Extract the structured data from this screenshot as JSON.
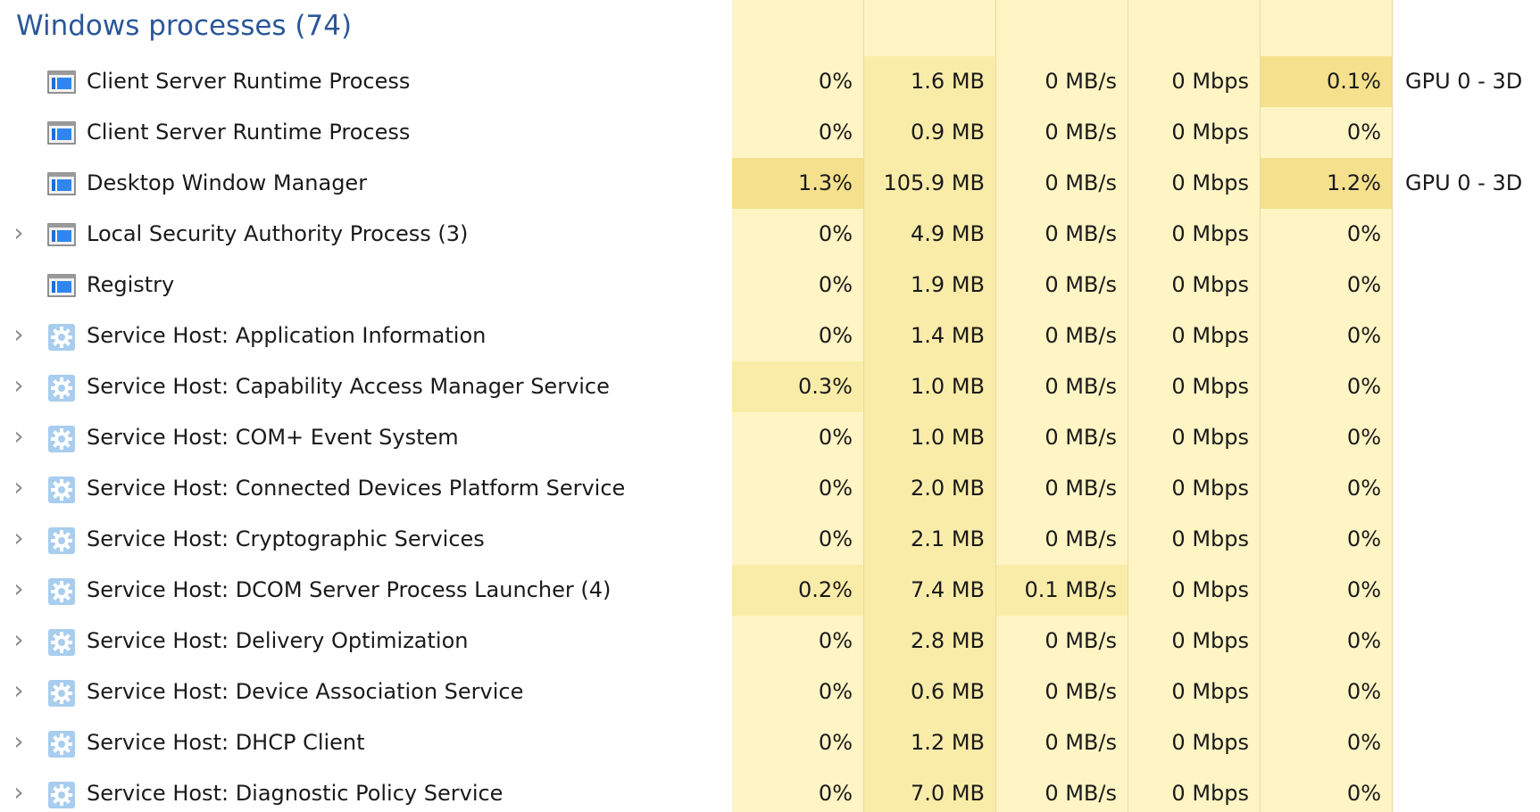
{
  "section": {
    "title": "Windows processes (74)"
  },
  "colors": {
    "heat_low": "#fff4c4",
    "heat_mid": "#f9eca8",
    "heat_high": "#f5e08e",
    "title_blue": "#2b579a"
  },
  "columns": [
    {
      "key": "cpu"
    },
    {
      "key": "memory"
    },
    {
      "key": "disk"
    },
    {
      "key": "network"
    },
    {
      "key": "gpu"
    },
    {
      "key": "gpu_engine"
    }
  ],
  "processes": [
    {
      "expandable": false,
      "icon": "window-app-icon",
      "name": "Client Server Runtime Process",
      "cpu": "0%",
      "memory": "1.6 MB",
      "disk": "0 MB/s",
      "network": "0 Mbps",
      "gpu": "0.1%",
      "gpu_engine": "GPU 0 - 3D",
      "heat": {
        "cpu": "low",
        "memory": "mid",
        "disk": "low",
        "network": "low",
        "gpu": "high"
      }
    },
    {
      "expandable": false,
      "icon": "window-app-icon",
      "name": "Client Server Runtime Process",
      "cpu": "0%",
      "memory": "0.9 MB",
      "disk": "0 MB/s",
      "network": "0 Mbps",
      "gpu": "0%",
      "gpu_engine": "",
      "heat": {
        "cpu": "low",
        "memory": "mid",
        "disk": "low",
        "network": "low",
        "gpu": "low"
      }
    },
    {
      "expandable": false,
      "icon": "window-app-icon",
      "name": "Desktop Window Manager",
      "cpu": "1.3%",
      "memory": "105.9 MB",
      "disk": "0 MB/s",
      "network": "0 Mbps",
      "gpu": "1.2%",
      "gpu_engine": "GPU 0 - 3D",
      "heat": {
        "cpu": "high",
        "memory": "mid",
        "disk": "low",
        "network": "low",
        "gpu": "high"
      }
    },
    {
      "expandable": true,
      "icon": "window-app-icon",
      "name": "Local Security Authority Process (3)",
      "cpu": "0%",
      "memory": "4.9 MB",
      "disk": "0 MB/s",
      "network": "0 Mbps",
      "gpu": "0%",
      "gpu_engine": "",
      "heat": {
        "cpu": "low",
        "memory": "mid",
        "disk": "low",
        "network": "low",
        "gpu": "low"
      }
    },
    {
      "expandable": false,
      "icon": "window-app-icon",
      "name": "Registry",
      "cpu": "0%",
      "memory": "1.9 MB",
      "disk": "0 MB/s",
      "network": "0 Mbps",
      "gpu": "0%",
      "gpu_engine": "",
      "heat": {
        "cpu": "low",
        "memory": "mid",
        "disk": "low",
        "network": "low",
        "gpu": "low"
      }
    },
    {
      "expandable": true,
      "icon": "gear-service-icon",
      "name": "Service Host: Application Information",
      "cpu": "0%",
      "memory": "1.4 MB",
      "disk": "0 MB/s",
      "network": "0 Mbps",
      "gpu": "0%",
      "gpu_engine": "",
      "heat": {
        "cpu": "low",
        "memory": "mid",
        "disk": "low",
        "network": "low",
        "gpu": "low"
      }
    },
    {
      "expandable": true,
      "icon": "gear-service-icon",
      "name": "Service Host: Capability Access Manager Service",
      "cpu": "0.3%",
      "memory": "1.0 MB",
      "disk": "0 MB/s",
      "network": "0 Mbps",
      "gpu": "0%",
      "gpu_engine": "",
      "heat": {
        "cpu": "mid",
        "memory": "mid",
        "disk": "low",
        "network": "low",
        "gpu": "low"
      }
    },
    {
      "expandable": true,
      "icon": "gear-service-icon",
      "name": "Service Host: COM+ Event System",
      "cpu": "0%",
      "memory": "1.0 MB",
      "disk": "0 MB/s",
      "network": "0 Mbps",
      "gpu": "0%",
      "gpu_engine": "",
      "heat": {
        "cpu": "low",
        "memory": "mid",
        "disk": "low",
        "network": "low",
        "gpu": "low"
      }
    },
    {
      "expandable": true,
      "icon": "gear-service-icon",
      "name": "Service Host: Connected Devices Platform Service",
      "cpu": "0%",
      "memory": "2.0 MB",
      "disk": "0 MB/s",
      "network": "0 Mbps",
      "gpu": "0%",
      "gpu_engine": "",
      "heat": {
        "cpu": "low",
        "memory": "mid",
        "disk": "low",
        "network": "low",
        "gpu": "low"
      }
    },
    {
      "expandable": true,
      "icon": "gear-service-icon",
      "name": "Service Host: Cryptographic Services",
      "cpu": "0%",
      "memory": "2.1 MB",
      "disk": "0 MB/s",
      "network": "0 Mbps",
      "gpu": "0%",
      "gpu_engine": "",
      "heat": {
        "cpu": "low",
        "memory": "mid",
        "disk": "low",
        "network": "low",
        "gpu": "low"
      }
    },
    {
      "expandable": true,
      "icon": "gear-service-icon",
      "name": "Service Host: DCOM Server Process Launcher (4)",
      "cpu": "0.2%",
      "memory": "7.4 MB",
      "disk": "0.1 MB/s",
      "network": "0 Mbps",
      "gpu": "0%",
      "gpu_engine": "",
      "heat": {
        "cpu": "mid",
        "memory": "mid",
        "disk": "mid",
        "network": "low",
        "gpu": "low"
      }
    },
    {
      "expandable": true,
      "icon": "gear-service-icon",
      "name": "Service Host: Delivery Optimization",
      "cpu": "0%",
      "memory": "2.8 MB",
      "disk": "0 MB/s",
      "network": "0 Mbps",
      "gpu": "0%",
      "gpu_engine": "",
      "heat": {
        "cpu": "low",
        "memory": "mid",
        "disk": "low",
        "network": "low",
        "gpu": "low"
      }
    },
    {
      "expandable": true,
      "icon": "gear-service-icon",
      "name": "Service Host: Device Association Service",
      "cpu": "0%",
      "memory": "0.6 MB",
      "disk": "0 MB/s",
      "network": "0 Mbps",
      "gpu": "0%",
      "gpu_engine": "",
      "heat": {
        "cpu": "low",
        "memory": "mid",
        "disk": "low",
        "network": "low",
        "gpu": "low"
      }
    },
    {
      "expandable": true,
      "icon": "gear-service-icon",
      "name": "Service Host: DHCP Client",
      "cpu": "0%",
      "memory": "1.2 MB",
      "disk": "0 MB/s",
      "network": "0 Mbps",
      "gpu": "0%",
      "gpu_engine": "",
      "heat": {
        "cpu": "low",
        "memory": "mid",
        "disk": "low",
        "network": "low",
        "gpu": "low"
      }
    },
    {
      "expandable": true,
      "icon": "gear-service-icon",
      "name": "Service Host: Diagnostic Policy Service",
      "cpu": "0%",
      "memory": "7.0 MB",
      "disk": "0 MB/s",
      "network": "0 Mbps",
      "gpu": "0%",
      "gpu_engine": "",
      "heat": {
        "cpu": "low",
        "memory": "mid",
        "disk": "low",
        "network": "low",
        "gpu": "low"
      }
    }
  ]
}
